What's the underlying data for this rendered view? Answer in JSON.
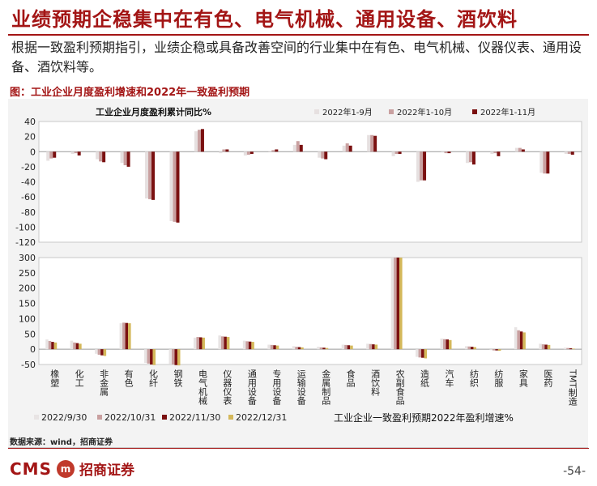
{
  "header": {
    "title": "业绩预期企稳集中在有色、电气机械、通用设备、酒饮料",
    "subtitle": "根据一致盈利预期指引，业绩企稳或具备改善空间的行业集中在有色、电气机械、仪器仪表、通用设备、酒饮料等。"
  },
  "figure": {
    "caption": "图：工业企业月度盈利增速和2022年一致盈利预期",
    "source": "数据来源：wind，招商证券"
  },
  "footer": {
    "logo_text": "CMS",
    "logo_mark": "m",
    "logo_cn": "招商证券",
    "page": "-54-"
  },
  "chart_data": [
    {
      "type": "bar",
      "title": "工业企业月度盈利累计同比%",
      "ylim": [
        -120,
        40
      ],
      "yticks": [
        40,
        20,
        0,
        -20,
        -40,
        -60,
        -80,
        -100,
        -120
      ],
      "legend_position": "top-right",
      "categories": [
        "橡塑",
        "化工",
        "非金属",
        "有色",
        "化纤",
        "钢铁",
        "电气机械",
        "仪器仪表",
        "通用设备",
        "专用设备",
        "运输设备",
        "金属制品",
        "食品",
        "酒饮料",
        "农副食品",
        "造纸",
        "汽车",
        "纺织",
        "纺服",
        "家具",
        "医药",
        "TMT制造"
      ],
      "series": [
        {
          "name": "2022年1-9月",
          "color": "#e6e0e0",
          "values": [
            -12,
            -3,
            -10,
            -15,
            -62,
            -92,
            27,
            -2,
            -5,
            1,
            9,
            -8,
            8,
            22,
            -6,
            -40,
            -1,
            -15,
            -3,
            5,
            -28,
            -3
          ]
        },
        {
          "name": "2022年1-10月",
          "color": "#c9a0a0",
          "values": [
            -9,
            -2,
            -13,
            -18,
            -63,
            -93,
            29,
            3,
            -4,
            2,
            14,
            -9,
            11,
            22,
            -3,
            -38,
            -2,
            -14,
            -2,
            5,
            -29,
            -3
          ]
        },
        {
          "name": "2022年1-11月",
          "color": "#7a1010",
          "values": [
            -8,
            -5,
            -14,
            -20,
            -64,
            -94,
            30,
            3,
            -3,
            3,
            9,
            -10,
            8,
            21,
            -3,
            -38,
            -2,
            -17,
            -6,
            3,
            -29,
            -4
          ]
        }
      ]
    },
    {
      "type": "bar",
      "title": "工业企业一致盈利预期2022年盈利增速%",
      "ylim": [
        -50,
        300
      ],
      "yticks": [
        300,
        250,
        200,
        150,
        100,
        50,
        0,
        -50
      ],
      "legend_position": "bottom",
      "categories": [
        "橡塑",
        "化工",
        "非金属",
        "有色",
        "化纤",
        "钢铁",
        "电气机械",
        "仪器仪表",
        "通用设备",
        "专用设备",
        "运输设备",
        "金属制品",
        "食品",
        "酒饮料",
        "农副食品",
        "造纸",
        "汽车",
        "纺织",
        "纺服",
        "家具",
        "医药",
        "TMT制造"
      ],
      "series": [
        {
          "name": "2022/9/30",
          "color": "#e8e4e4",
          "values": [
            32,
            28,
            -15,
            85,
            -45,
            -48,
            38,
            45,
            28,
            15,
            10,
            8,
            15,
            18,
            300,
            -25,
            35,
            10,
            -3,
            72,
            18,
            5
          ]
        },
        {
          "name": "2022/10/31",
          "color": "#c9a0a0",
          "values": [
            27,
            22,
            -18,
            87,
            -47,
            -50,
            40,
            42,
            26,
            14,
            8,
            6,
            14,
            17,
            300,
            -27,
            33,
            9,
            -4,
            62,
            16,
            4
          ]
        },
        {
          "name": "2022/11/30",
          "color": "#7a1010",
          "values": [
            24,
            20,
            -20,
            86,
            -50,
            -52,
            39,
            41,
            25,
            13,
            7,
            5,
            13,
            16,
            300,
            -28,
            32,
            8,
            -4,
            58,
            15,
            3
          ]
        },
        {
          "name": "2022/12/31",
          "color": "#d4b85a",
          "values": [
            22,
            18,
            -22,
            85,
            -52,
            -53,
            38,
            40,
            24,
            12,
            6,
            4,
            12,
            15,
            300,
            -30,
            30,
            7,
            -5,
            55,
            14,
            2
          ]
        }
      ]
    }
  ]
}
